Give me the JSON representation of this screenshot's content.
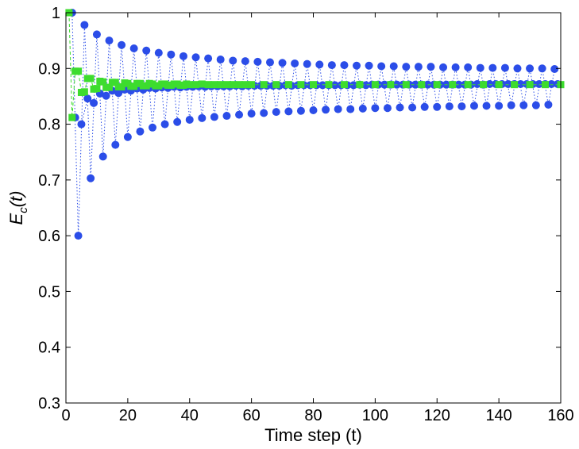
{
  "chart_data": {
    "type": "scatter",
    "title": "",
    "xlabel": "Time step (t)",
    "ylabel": {
      "base": "E",
      "sub": "c",
      "rest": "(t)"
    },
    "xlim": [
      0,
      160
    ],
    "ylim": [
      0.3,
      1.0
    ],
    "xticks": [
      0,
      20,
      40,
      60,
      80,
      100,
      120,
      140,
      160
    ],
    "yticks": [
      0.3,
      0.4,
      0.5,
      0.6,
      0.7,
      0.8,
      0.9,
      1.0
    ],
    "ytick_labels": [
      "0.3",
      "0.4",
      "0.5",
      "0.6",
      "0.7",
      "0.8",
      "0.9",
      "1"
    ],
    "grid": false,
    "series": [
      {
        "color": "#2b4de8",
        "marker": "circle",
        "line": "dotted",
        "x": [
          2,
          4,
          6,
          8,
          10,
          12,
          14,
          16,
          18,
          20,
          22,
          24,
          26,
          28,
          30,
          32,
          34,
          36,
          38,
          40,
          42,
          44,
          46,
          48,
          50,
          52,
          54,
          56,
          58,
          60,
          62,
          64,
          66,
          68,
          70,
          72,
          74,
          76,
          78,
          80,
          82,
          84,
          86,
          88,
          90,
          92,
          94,
          96,
          98,
          100,
          102,
          104,
          106,
          108,
          110,
          112,
          114,
          116,
          118,
          120,
          122,
          124,
          126,
          128,
          130,
          132,
          134,
          136,
          138,
          140,
          142,
          144,
          146,
          148,
          150,
          152,
          154,
          156,
          158
        ],
        "y": [
          1.0,
          0.6,
          0.978,
          0.703,
          0.961,
          0.742,
          0.95,
          0.763,
          0.942,
          0.777,
          0.936,
          0.787,
          0.932,
          0.794,
          0.928,
          0.8,
          0.925,
          0.804,
          0.922,
          0.808,
          0.92,
          0.811,
          0.918,
          0.813,
          0.916,
          0.815,
          0.914,
          0.817,
          0.913,
          0.819,
          0.912,
          0.82,
          0.911,
          0.822,
          0.91,
          0.823,
          0.909,
          0.824,
          0.908,
          0.825,
          0.907,
          0.826,
          0.906,
          0.827,
          0.906,
          0.827,
          0.905,
          0.828,
          0.905,
          0.829,
          0.904,
          0.829,
          0.904,
          0.83,
          0.903,
          0.83,
          0.903,
          0.831,
          0.903,
          0.831,
          0.902,
          0.832,
          0.902,
          0.832,
          0.902,
          0.833,
          0.901,
          0.833,
          0.901,
          0.833,
          0.901,
          0.834,
          0.9,
          0.834,
          0.9,
          0.834,
          0.9,
          0.835,
          0.899
        ]
      },
      {
        "color": "#2b4de8",
        "marker": "circle",
        "line": "dotted",
        "x": [
          3,
          5,
          7,
          9,
          11,
          13,
          15,
          17,
          19,
          21,
          23,
          25,
          27,
          29,
          31,
          33,
          35,
          37,
          39,
          41,
          43,
          45,
          47,
          49,
          51,
          53,
          55,
          57,
          59,
          61,
          63,
          65,
          67,
          69,
          71,
          73,
          75,
          77,
          79,
          81,
          83,
          85,
          87,
          89,
          91,
          93,
          95,
          97,
          99,
          101,
          103,
          105,
          107,
          109,
          111,
          113,
          115,
          117,
          119,
          121,
          123,
          125,
          127,
          129,
          131,
          133,
          135,
          137,
          139,
          141,
          143,
          145,
          147,
          149,
          151,
          153,
          155,
          157,
          159
        ],
        "y": [
          0.812,
          0.8,
          0.846,
          0.838,
          0.855,
          0.851,
          0.86,
          0.856,
          0.862,
          0.86,
          0.864,
          0.862,
          0.865,
          0.864,
          0.866,
          0.865,
          0.867,
          0.866,
          0.867,
          0.867,
          0.868,
          0.867,
          0.868,
          0.868,
          0.868,
          0.868,
          0.869,
          0.868,
          0.869,
          0.869,
          0.869,
          0.869,
          0.869,
          0.869,
          0.87,
          0.869,
          0.87,
          0.87,
          0.87,
          0.87,
          0.87,
          0.87,
          0.87,
          0.87,
          0.87,
          0.87,
          0.871,
          0.87,
          0.871,
          0.871,
          0.871,
          0.871,
          0.871,
          0.871,
          0.871,
          0.871,
          0.871,
          0.871,
          0.871,
          0.871,
          0.871,
          0.871,
          0.871,
          0.871,
          0.871,
          0.872,
          0.871,
          0.872,
          0.872,
          0.872,
          0.872,
          0.872,
          0.872,
          0.872,
          0.872,
          0.872,
          0.872,
          0.872,
          0.872
        ]
      },
      {
        "color": "#3ddc2e",
        "marker": "square",
        "line": "dashed",
        "x": [
          1,
          2,
          3,
          4,
          5,
          6,
          7,
          8,
          9,
          10,
          11,
          12,
          13,
          14,
          15,
          16,
          17,
          18,
          19,
          20,
          21,
          22,
          23,
          24,
          25,
          26,
          27,
          28,
          29,
          30,
          31,
          32,
          33,
          34,
          35,
          36,
          37,
          38,
          39,
          40,
          42,
          44,
          46,
          48,
          50,
          52,
          54,
          56,
          58,
          60,
          64,
          68,
          72,
          76,
          80,
          85,
          90,
          95,
          100,
          105,
          110,
          115,
          120,
          125,
          130,
          135,
          140,
          145,
          150,
          155,
          160
        ],
        "y": [
          1.0,
          0.812,
          0.895,
          0.895,
          0.857,
          0.858,
          0.882,
          0.882,
          0.863,
          0.864,
          0.877,
          0.876,
          0.866,
          0.866,
          0.875,
          0.875,
          0.867,
          0.867,
          0.874,
          0.873,
          0.868,
          0.868,
          0.873,
          0.873,
          0.869,
          0.869,
          0.873,
          0.872,
          0.869,
          0.869,
          0.872,
          0.872,
          0.87,
          0.87,
          0.872,
          0.872,
          0.87,
          0.87,
          0.872,
          0.871,
          0.871,
          0.872,
          0.871,
          0.871,
          0.871,
          0.871,
          0.871,
          0.871,
          0.871,
          0.871,
          0.871,
          0.871,
          0.871,
          0.871,
          0.871,
          0.871,
          0.871,
          0.871,
          0.871,
          0.871,
          0.871,
          0.871,
          0.871,
          0.871,
          0.871,
          0.871,
          0.871,
          0.871,
          0.871,
          0.871,
          0.871
        ]
      }
    ]
  }
}
